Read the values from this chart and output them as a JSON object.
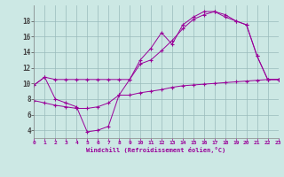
{
  "background_color": "#cce8e4",
  "line_color": "#990099",
  "grid_color": "#99bbbb",
  "xlabel": "Windchill (Refroidissement éolien,°C)",
  "xlim": [
    0,
    23
  ],
  "ylim": [
    3.0,
    20.0
  ],
  "yticks": [
    4,
    6,
    8,
    10,
    12,
    14,
    16,
    18
  ],
  "xticks": [
    0,
    1,
    2,
    3,
    4,
    5,
    6,
    7,
    8,
    9,
    10,
    11,
    12,
    13,
    14,
    15,
    16,
    17,
    18,
    19,
    20,
    21,
    22,
    23
  ],
  "line1_x": [
    0,
    1,
    2,
    3,
    4,
    5,
    6,
    7,
    8,
    9,
    10,
    11,
    12,
    13,
    14,
    15,
    16,
    17,
    18,
    19,
    20,
    21,
    22,
    23
  ],
  "line1_y": [
    9.8,
    10.8,
    10.5,
    10.5,
    10.5,
    10.5,
    10.5,
    10.5,
    10.5,
    10.5,
    13.0,
    14.5,
    16.5,
    15.0,
    17.5,
    18.5,
    19.2,
    19.2,
    18.5,
    18.0,
    17.5,
    13.5,
    10.5,
    10.5
  ],
  "line2_x": [
    0,
    1,
    2,
    3,
    4,
    5,
    6,
    7,
    8,
    9,
    10,
    11,
    12,
    13,
    14,
    15,
    16,
    17,
    18,
    19,
    20,
    21,
    22,
    23
  ],
  "line2_y": [
    9.8,
    10.8,
    8.0,
    7.5,
    7.0,
    3.8,
    4.0,
    4.5,
    8.5,
    10.5,
    12.5,
    13.0,
    14.2,
    15.5,
    17.0,
    18.2,
    18.8,
    19.2,
    18.8,
    18.0,
    17.5,
    13.5,
    10.5,
    10.5
  ],
  "line3_x": [
    0,
    1,
    2,
    3,
    4,
    5,
    6,
    7,
    8,
    9,
    10,
    11,
    12,
    13,
    14,
    15,
    16,
    17,
    18,
    19,
    20,
    21,
    22,
    23
  ],
  "line3_y": [
    7.8,
    7.5,
    7.2,
    7.0,
    6.8,
    6.8,
    7.0,
    7.5,
    8.5,
    8.5,
    8.8,
    9.0,
    9.2,
    9.5,
    9.7,
    9.8,
    9.9,
    10.0,
    10.1,
    10.2,
    10.3,
    10.4,
    10.5,
    10.5
  ]
}
